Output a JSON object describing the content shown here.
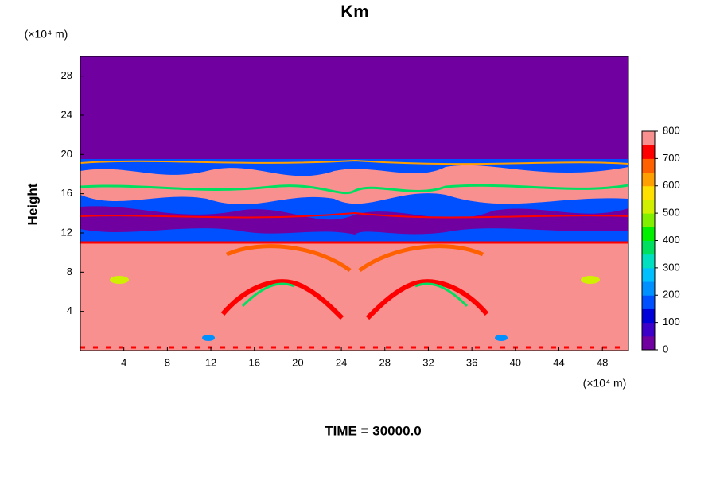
{
  "chart_data": {
    "type": "contour",
    "title": "Km",
    "y_unit": "(×10⁴ m)",
    "x_unit": "(×10⁴ m)",
    "ylabel": "Height",
    "footer": "TIME = 30000.0",
    "xlim": [
      0,
      50.4
    ],
    "ylim": [
      0,
      30
    ],
    "xticks": [
      4,
      8,
      12,
      16,
      20,
      24,
      28,
      32,
      36,
      40,
      44,
      48
    ],
    "yticks": [
      4,
      8,
      12,
      16,
      20,
      24,
      28
    ],
    "colorbar": {
      "lim": [
        0,
        800
      ],
      "ticks": [
        0,
        100,
        200,
        300,
        400,
        500,
        600,
        700,
        800
      ],
      "colors": [
        "#7000a0",
        "#3c00c8",
        "#0000d8",
        "#0050ff",
        "#0090ff",
        "#00c0ff",
        "#00e0c0",
        "#00e060",
        "#00f000",
        "#80f000",
        "#d0f000",
        "#ffe000",
        "#ffa000",
        "#ff6000",
        "#ff0000",
        "#f89090"
      ]
    }
  }
}
